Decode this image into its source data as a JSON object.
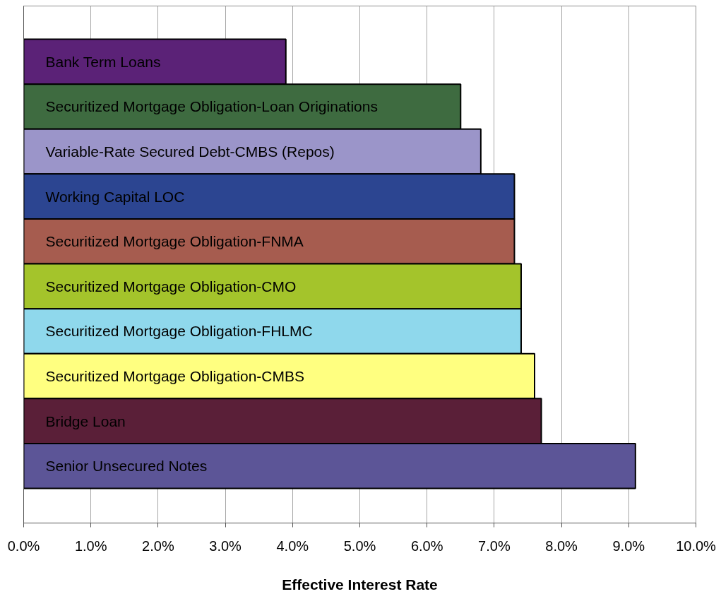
{
  "chart_data": {
    "type": "bar",
    "orientation": "horizontal",
    "xlabel": "Effective Interest Rate",
    "categories": [
      "Bank Term Loans",
      "Securitized Mortgage Obligation-Loan Originations",
      "Variable-Rate Secured Debt-CMBS (Repos)",
      "Working Capital LOC",
      "Securitized Mortgage Obligation-FNMA",
      "Securitized Mortgage Obligation-CMO",
      "Securitized Mortgage Obligation-FHLMC",
      "Securitized Mortgage Obligation-CMBS",
      "Bridge Loan",
      "Senior Unsecured Notes"
    ],
    "values": [
      3.9,
      6.5,
      6.8,
      7.3,
      7.3,
      7.4,
      7.4,
      7.6,
      7.7,
      9.1
    ],
    "colors": [
      "#5b2277",
      "#3e6b40",
      "#9b95c9",
      "#2c4591",
      "#a65c4f",
      "#a4c42b",
      "#8fd8ec",
      "#ffff80",
      "#5a1f38",
      "#5c5597"
    ],
    "xlim": [
      0,
      10
    ],
    "xticks": [
      {
        "value": 0,
        "label": "0.0%"
      },
      {
        "value": 1,
        "label": "1.0%"
      },
      {
        "value": 2,
        "label": "2.0%"
      },
      {
        "value": 3,
        "label": "3.0%"
      },
      {
        "value": 4,
        "label": "4.0%"
      },
      {
        "value": 5,
        "label": "5.0%"
      },
      {
        "value": 6,
        "label": "6.0%"
      },
      {
        "value": 7,
        "label": "7.0%"
      },
      {
        "value": 8,
        "label": "8.0%"
      },
      {
        "value": 9,
        "label": "9.0%"
      },
      {
        "value": 10,
        "label": "10.0%"
      }
    ],
    "grid": "x"
  }
}
